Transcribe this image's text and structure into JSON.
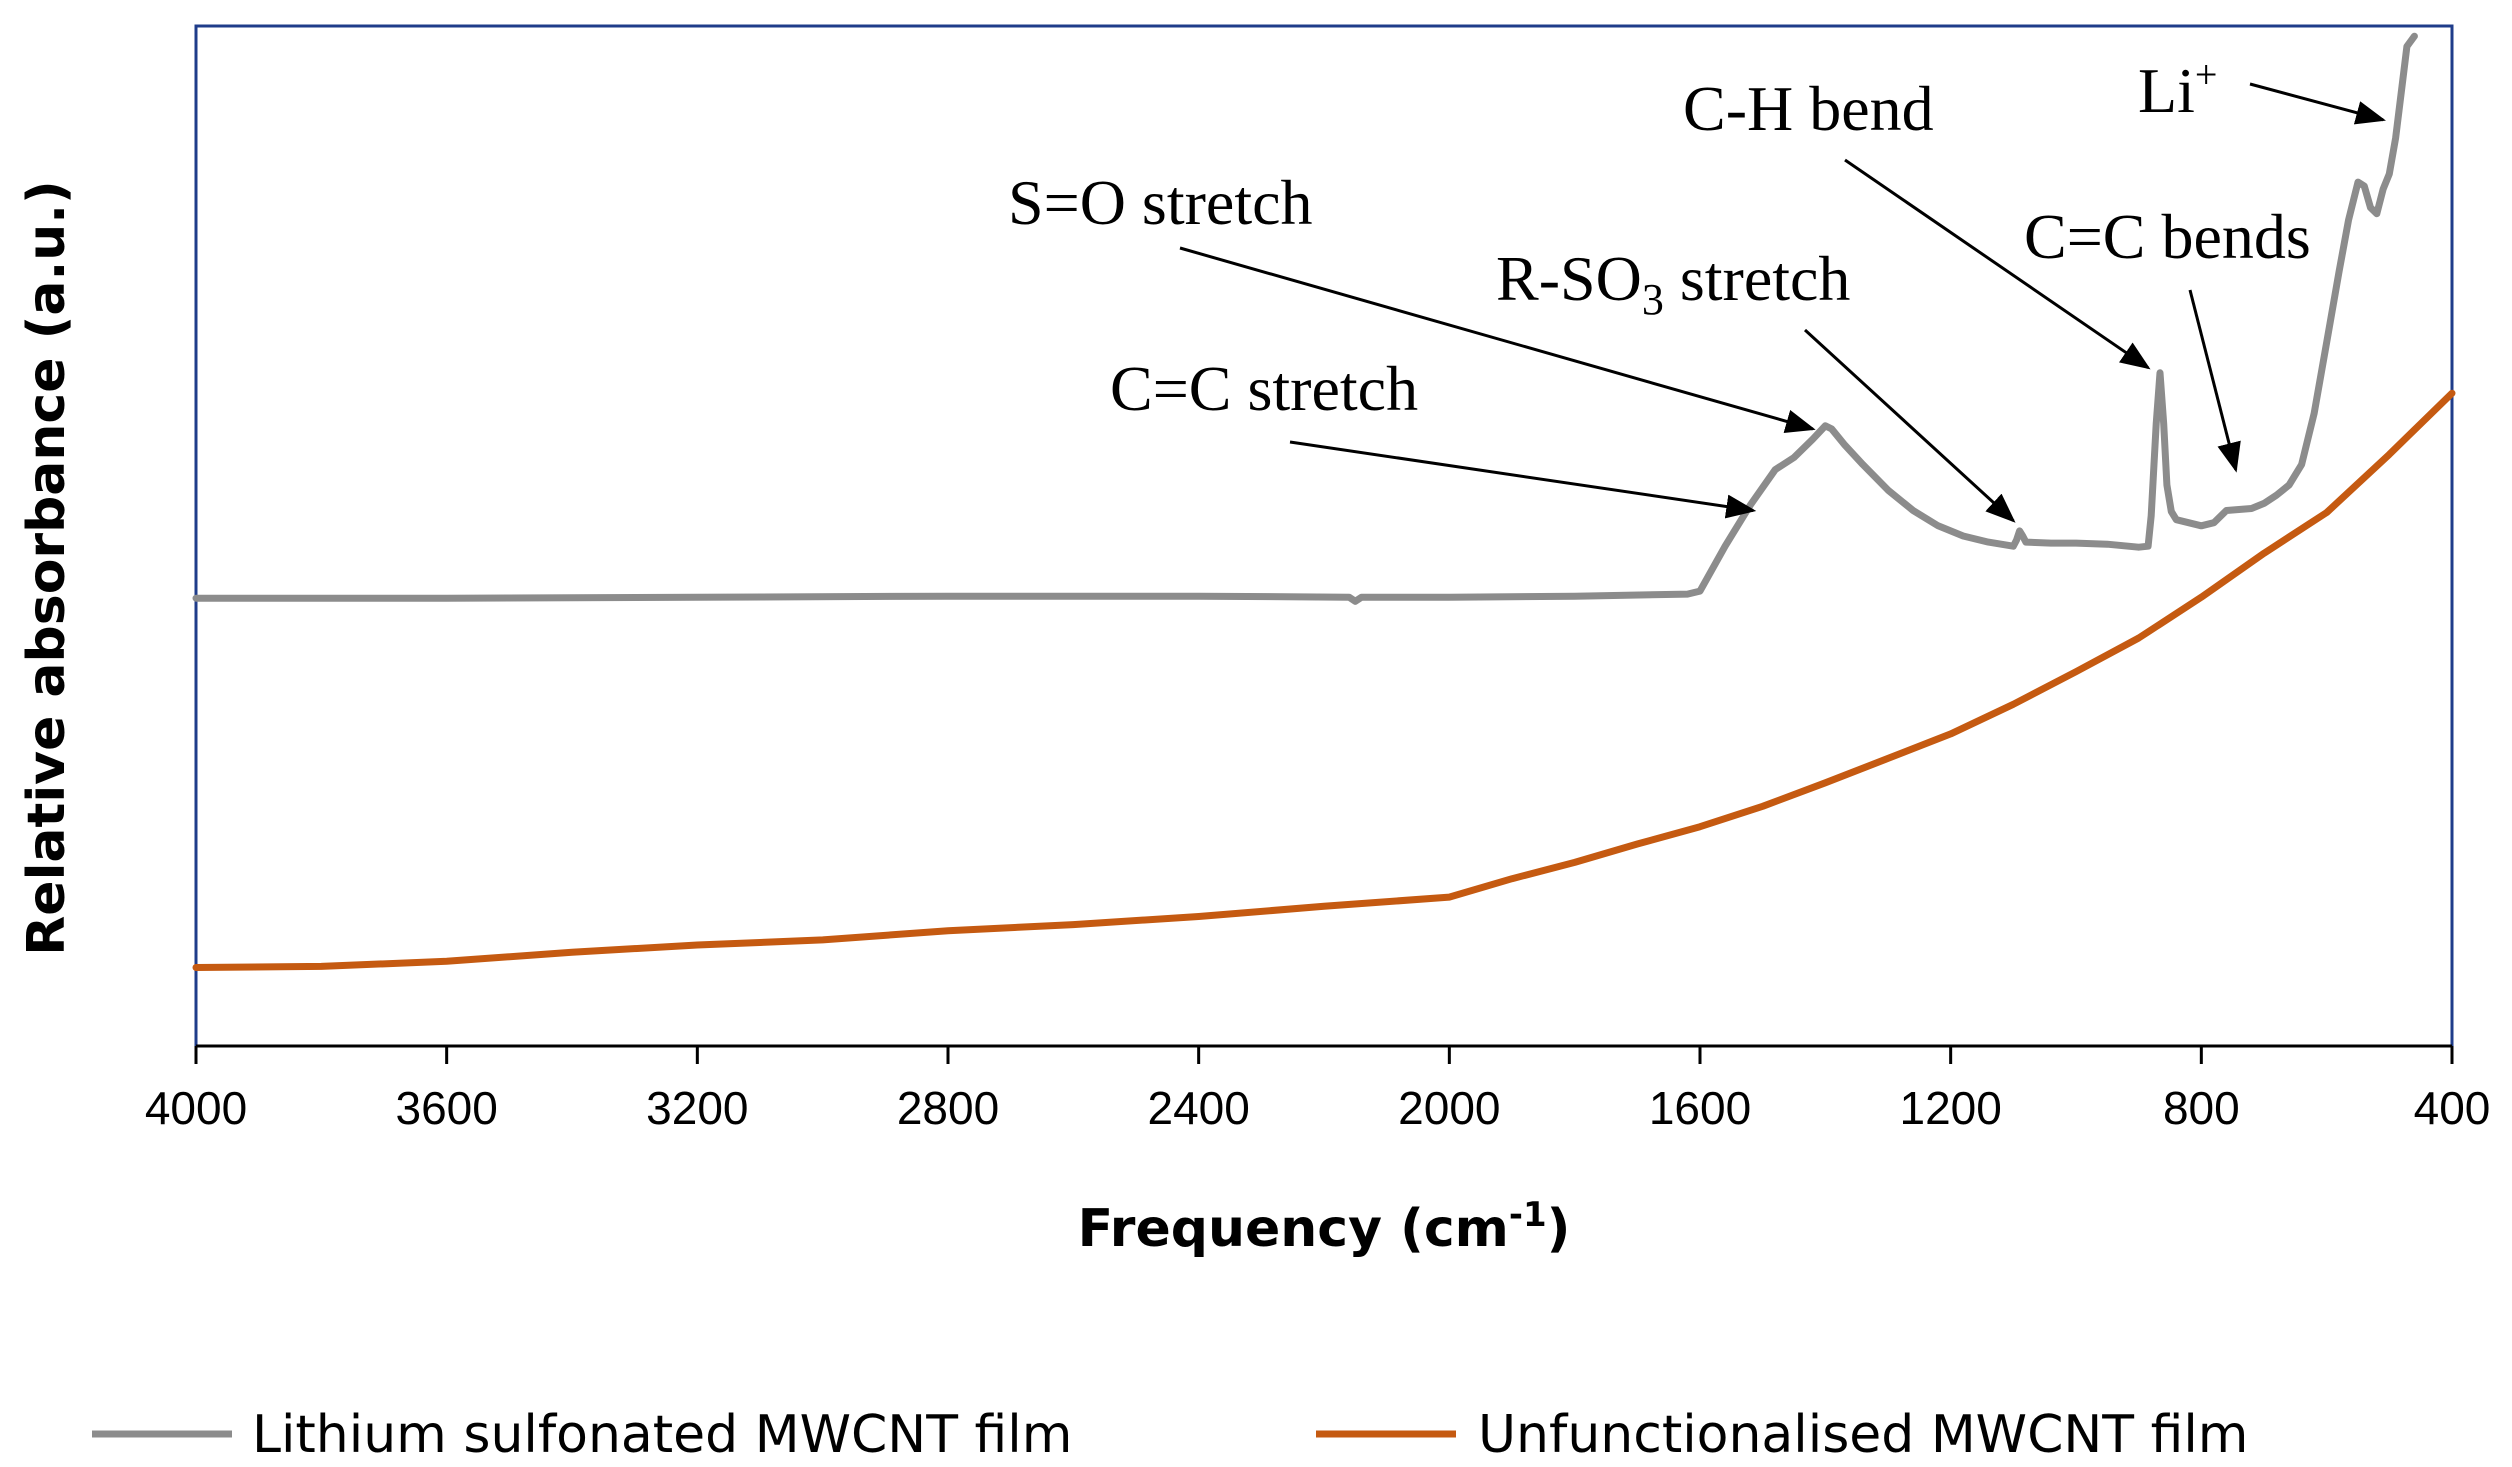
{
  "chart_data": {
    "type": "line",
    "title": "",
    "xlabel": "Frequency (cm",
    "xlabel_sup": "-1",
    "xlabel_tail": ")",
    "ylabel": "Relative absorbance (a.u.)",
    "xlim": [
      4000,
      400
    ],
    "ylim": [
      0,
      100
    ],
    "x_ticks": [
      4000,
      3600,
      3200,
      2800,
      2400,
      2000,
      1600,
      1200,
      800,
      400
    ],
    "x_tick_labels": [
      "4000",
      "3600",
      "3200",
      "2800",
      "2400",
      "2000",
      "1600",
      "1200",
      "800",
      "400"
    ],
    "legend_position": "bottom",
    "series": [
      {
        "name": "Lithium sulfonated MWCNT film",
        "color": "#8c8c8c",
        "points": [
          [
            4000,
            43.9
          ],
          [
            3600,
            43.9
          ],
          [
            3200,
            44
          ],
          [
            2800,
            44.1
          ],
          [
            2400,
            44.1
          ],
          [
            2160,
            44
          ],
          [
            2150,
            43.6
          ],
          [
            2140,
            44
          ],
          [
            2000,
            44
          ],
          [
            1800,
            44.1
          ],
          [
            1620,
            44.3
          ],
          [
            1600,
            44.6
          ],
          [
            1560,
            49
          ],
          [
            1520,
            53
          ],
          [
            1480,
            56.5
          ],
          [
            1450,
            57.7
          ],
          [
            1420,
            59.5
          ],
          [
            1400,
            60.8
          ],
          [
            1390,
            60.5
          ],
          [
            1370,
            59
          ],
          [
            1340,
            57
          ],
          [
            1300,
            54.5
          ],
          [
            1260,
            52.5
          ],
          [
            1220,
            51
          ],
          [
            1180,
            50
          ],
          [
            1140,
            49.4
          ],
          [
            1100,
            49
          ],
          [
            1095,
            49.6
          ],
          [
            1090,
            50.5
          ],
          [
            1085,
            50
          ],
          [
            1080,
            49.4
          ],
          [
            1040,
            49.3
          ],
          [
            1000,
            49.3
          ],
          [
            950,
            49.2
          ],
          [
            900,
            48.9
          ],
          [
            885,
            49
          ],
          [
            880,
            52
          ],
          [
            872,
            61
          ],
          [
            866,
            66
          ],
          [
            860,
            61
          ],
          [
            855,
            55
          ],
          [
            848,
            52.4
          ],
          [
            840,
            51.6
          ],
          [
            800,
            51
          ],
          [
            780,
            51.3
          ],
          [
            760,
            52.5
          ],
          [
            740,
            52.6
          ],
          [
            720,
            52.7
          ],
          [
            700,
            53.2
          ],
          [
            680,
            54
          ],
          [
            660,
            55
          ],
          [
            640,
            57
          ],
          [
            620,
            62
          ],
          [
            600,
            69
          ],
          [
            580,
            76
          ],
          [
            565,
            81
          ],
          [
            550,
            84.7
          ],
          [
            540,
            84.3
          ],
          [
            530,
            82.2
          ],
          [
            520,
            81.6
          ],
          [
            510,
            84
          ],
          [
            500,
            85.5
          ],
          [
            490,
            89
          ],
          [
            480,
            94
          ],
          [
            472,
            98
          ],
          [
            460,
            99
          ]
        ]
      },
      {
        "name": "Unfunctionalised MWCNT film",
        "color": "#c55a11",
        "points": [
          [
            4000,
            7.7
          ],
          [
            3800,
            7.8
          ],
          [
            3600,
            8.3
          ],
          [
            3400,
            9.2
          ],
          [
            3200,
            9.9
          ],
          [
            3000,
            10.4
          ],
          [
            2800,
            11.3
          ],
          [
            2600,
            11.9
          ],
          [
            2400,
            12.7
          ],
          [
            2200,
            13.7
          ],
          [
            2000,
            14.6
          ],
          [
            1900,
            16.4
          ],
          [
            1800,
            18
          ],
          [
            1700,
            19.8
          ],
          [
            1600,
            21.5
          ],
          [
            1500,
            23.5
          ],
          [
            1400,
            25.8
          ],
          [
            1300,
            28.2
          ],
          [
            1200,
            30.6
          ],
          [
            1100,
            33.5
          ],
          [
            1000,
            36.7
          ],
          [
            900,
            40
          ],
          [
            800,
            44
          ],
          [
            700,
            48.3
          ],
          [
            600,
            52.3
          ],
          [
            500,
            58
          ],
          [
            400,
            64
          ]
        ]
      }
    ],
    "annotations": [
      {
        "text": "C=C stretch",
        "sub": "",
        "tail": "",
        "sup": "",
        "target_x": 1515,
        "target_y": 52.5
      },
      {
        "text": "S=O stretch",
        "sub": "",
        "tail": "",
        "sup": "",
        "target_x": 1420,
        "target_y": 60.5
      },
      {
        "text": "R-SO",
        "sub": "3",
        "tail": " stretch",
        "sup": "",
        "target_x": 1100,
        "target_y": 51.5
      },
      {
        "text": "C-H bend",
        "sub": "",
        "tail": "",
        "sup": "",
        "target_x": 885,
        "target_y": 66.5
      },
      {
        "text": "C=C bends",
        "sub": "",
        "tail": "",
        "sup": "",
        "target_x": 745,
        "target_y": 56.5
      },
      {
        "text": "Li",
        "sub": "",
        "tail": "",
        "sup": "+",
        "target_x": 510,
        "target_y": 90.8
      }
    ]
  }
}
